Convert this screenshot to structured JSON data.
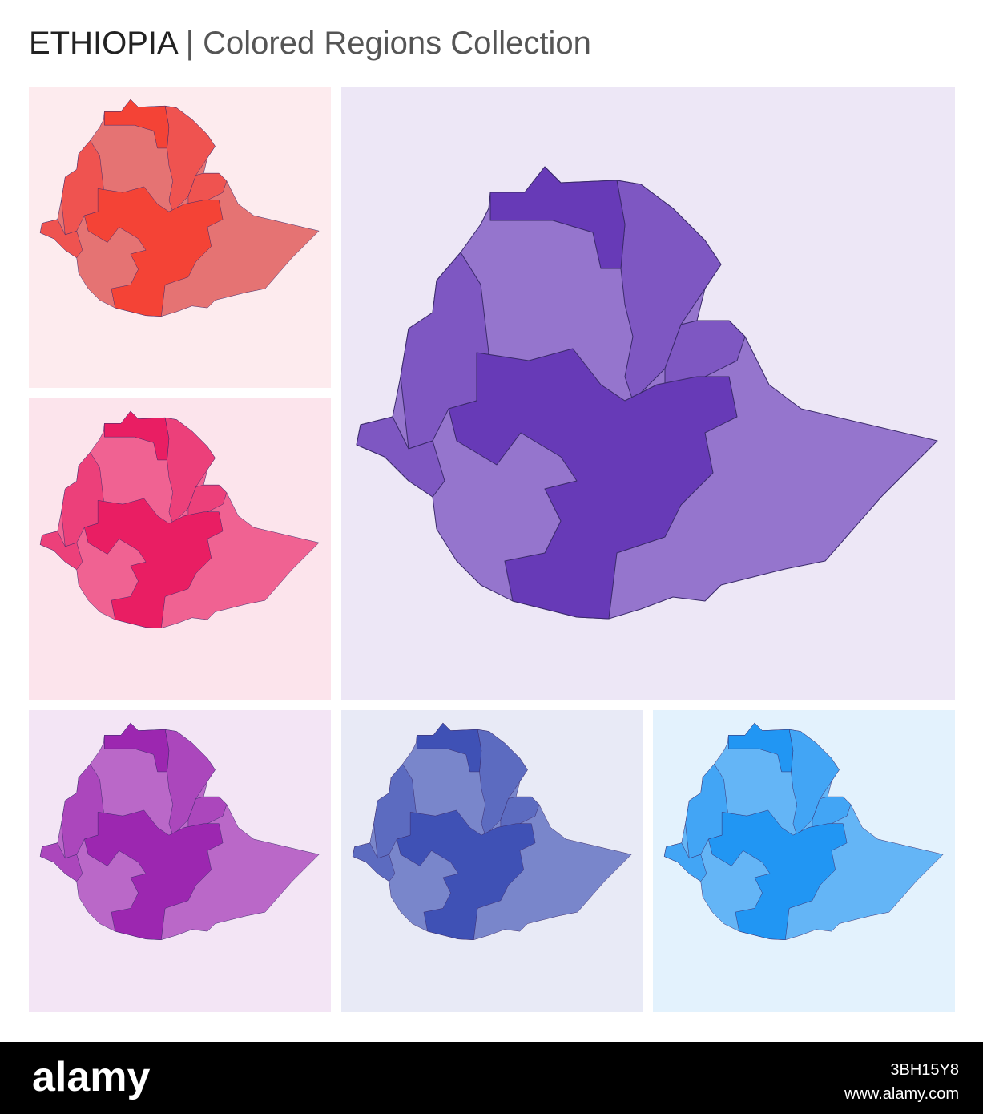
{
  "header": {
    "country": "ETHIOPIA",
    "subtitle": "| Colored Regions Collection"
  },
  "footer": {
    "logo": "alamy",
    "image_id": "3BH15Y8",
    "url": "www.alamy.com"
  }
}
